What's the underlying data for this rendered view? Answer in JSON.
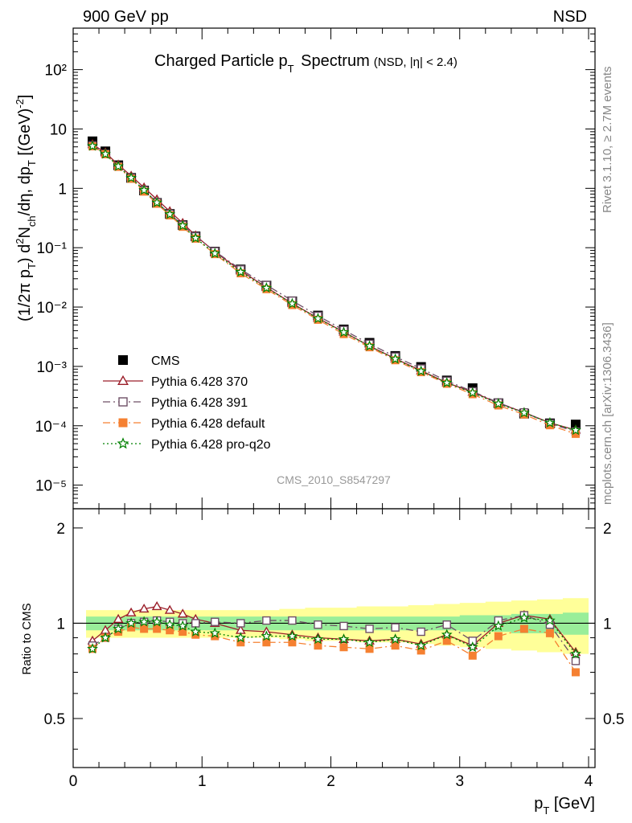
{
  "header": {
    "left": "900 GeV pp",
    "right": "NSD"
  },
  "side_text": {
    "rivet": "Rivet 3.1.10, ≥ 2.7M events",
    "mcplots": "mcplots.cern.ch [arXiv:1306.3436]"
  },
  "chart_data": [
    {
      "type": "scatter",
      "panel": "main",
      "title": "Charged Particle p_T Spectrum",
      "subtitle": "(NSD, |η| < 2.4)",
      "watermark": "CMS_2010_S8547297",
      "xlabel": "p_T [GeV]",
      "ylabel": "(1/2π p_T) d²N_ch/dη, dp_T [(GeV)⁻²]",
      "xlim": [
        0,
        4.05
      ],
      "ylim": [
        4e-06,
        500
      ],
      "yscale": "log",
      "ytick_labels": [
        "10⁻⁵",
        "10⁻⁴",
        "10⁻³",
        "10⁻²",
        "10⁻¹",
        "1",
        "10",
        "10²"
      ],
      "legend_position": "lower-left",
      "x": [
        0.15,
        0.25,
        0.35,
        0.45,
        0.55,
        0.65,
        0.75,
        0.85,
        0.95,
        1.1,
        1.3,
        1.5,
        1.7,
        1.9,
        2.1,
        2.3,
        2.5,
        2.7,
        2.9,
        3.1,
        3.3,
        3.5,
        3.7,
        3.9
      ],
      "series": [
        {
          "name": "CMS",
          "color": "#000000",
          "marker": "square-filled",
          "line": "none",
          "values": [
            6.2,
            4.2,
            2.45,
            1.5,
            0.92,
            0.57,
            0.37,
            0.24,
            0.155,
            0.086,
            0.043,
            0.023,
            0.0125,
            0.0072,
            0.0042,
            0.0025,
            0.0015,
            0.00098,
            0.00058,
            0.00043,
            0.00024,
            0.00016,
            0.00011,
            0.000105
          ]
        },
        {
          "name": "Pythia 6.428 370",
          "color": "#9b1f2a",
          "marker": "triangle-open",
          "line": "solid",
          "values": [
            5.5,
            4.0,
            2.5,
            1.62,
            1.03,
            0.65,
            0.41,
            0.26,
            0.16,
            0.085,
            0.041,
            0.0215,
            0.0115,
            0.0065,
            0.0038,
            0.0022,
            0.00135,
            0.00085,
            0.00053,
            0.00037,
            0.00024,
            0.000168,
            0.000112,
            8.5e-05
          ]
        },
        {
          "name": "Pythia 6.428 391",
          "color": "#6e4f66",
          "marker": "square-open",
          "line": "dashdot",
          "values": [
            5.3,
            3.8,
            2.35,
            1.5,
            0.93,
            0.58,
            0.37,
            0.24,
            0.155,
            0.087,
            0.043,
            0.0235,
            0.0128,
            0.0071,
            0.0041,
            0.0024,
            0.00146,
            0.00092,
            0.00057,
            0.00038,
            0.000245,
            0.000168,
            0.000109,
            8e-05
          ]
        },
        {
          "name": "Pythia 6.428 default",
          "color": "#f58031",
          "marker": "square-filled",
          "line": "dashdot",
          "values": [
            5.1,
            3.75,
            2.3,
            1.45,
            0.88,
            0.55,
            0.35,
            0.225,
            0.142,
            0.078,
            0.037,
            0.02,
            0.0108,
            0.0061,
            0.0035,
            0.0021,
            0.00127,
            0.0008,
            0.00051,
            0.00034,
            0.00022,
            0.000155,
            0.000102,
            7.3e-05
          ]
        },
        {
          "name": "Pythia 6.428 pro-q2o",
          "color": "#008000",
          "marker": "star-open",
          "line": "dotted",
          "values": [
            5.15,
            3.78,
            2.35,
            1.5,
            0.93,
            0.575,
            0.365,
            0.235,
            0.145,
            0.08,
            0.039,
            0.021,
            0.0114,
            0.0064,
            0.00375,
            0.0022,
            0.00133,
            0.00083,
            0.00053,
            0.00036,
            0.000235,
            0.000165,
            0.000112,
            8.4e-05
          ]
        }
      ]
    },
    {
      "type": "line",
      "panel": "ratio",
      "ylabel": "Ratio to CMS",
      "xlabel": "p_T [GeV]",
      "xlim": [
        0,
        4.05
      ],
      "ylim": [
        0.35,
        2.3
      ],
      "yscale": "log",
      "yticks": [
        0.5,
        1,
        2
      ],
      "ytick_labels": [
        "0.5",
        "1",
        "2"
      ],
      "xticks": [
        0,
        1,
        2,
        3,
        4
      ],
      "xtick_labels": [
        "0",
        "1",
        "2",
        "3",
        "4"
      ],
      "x": [
        0.15,
        0.25,
        0.35,
        0.45,
        0.55,
        0.65,
        0.75,
        0.85,
        0.95,
        1.1,
        1.3,
        1.5,
        1.7,
        1.9,
        2.1,
        2.3,
        2.5,
        2.7,
        2.9,
        3.1,
        3.3,
        3.5,
        3.7,
        3.9
      ],
      "band_x": [
        0.1,
        0.2,
        0.3,
        0.4,
        0.5,
        0.6,
        0.7,
        0.8,
        0.9,
        1.0,
        1.2,
        1.4,
        1.6,
        1.8,
        2.0,
        2.2,
        2.4,
        2.6,
        2.8,
        3.0,
        3.2,
        3.4,
        3.6,
        3.8,
        4.0
      ],
      "band_inner": [
        0.05,
        0.05,
        0.05,
        0.05,
        0.05,
        0.05,
        0.05,
        0.05,
        0.05,
        0.05,
        0.05,
        0.05,
        0.05,
        0.05,
        0.05,
        0.05,
        0.05,
        0.05,
        0.05,
        0.06,
        0.06,
        0.07,
        0.07,
        0.08
      ],
      "band_outer": [
        0.1,
        0.1,
        0.1,
        0.1,
        0.1,
        0.1,
        0.1,
        0.1,
        0.1,
        0.1,
        0.1,
        0.1,
        0.11,
        0.12,
        0.12,
        0.13,
        0.13,
        0.14,
        0.15,
        0.16,
        0.17,
        0.18,
        0.19,
        0.2
      ],
      "band_colors": {
        "inner": "#99ee99",
        "outer": "#ffff99"
      },
      "series": [
        {
          "name": "Pythia 6.428 370",
          "color": "#9b1f2a",
          "marker": "triangle-open",
          "line": "solid",
          "values": [
            0.88,
            0.95,
            1.03,
            1.08,
            1.11,
            1.13,
            1.1,
            1.07,
            1.03,
            1.0,
            0.95,
            0.94,
            0.92,
            0.9,
            0.89,
            0.88,
            0.89,
            0.86,
            0.92,
            0.85,
            1.0,
            1.06,
            1.03,
            0.81
          ]
        },
        {
          "name": "Pythia 6.428 391",
          "color": "#6e4f66",
          "marker": "square-open",
          "line": "dashdot",
          "values": [
            0.85,
            0.9,
            0.96,
            1.0,
            1.01,
            1.02,
            1.01,
            1.0,
            1.0,
            1.01,
            1.0,
            1.02,
            1.02,
            0.99,
            0.98,
            0.96,
            0.97,
            0.94,
            0.99,
            0.88,
            1.02,
            1.06,
            0.99,
            0.76
          ]
        },
        {
          "name": "Pythia 6.428 default",
          "color": "#f58031",
          "marker": "square-filled",
          "line": "dashdot",
          "values": [
            0.83,
            0.9,
            0.94,
            0.97,
            0.96,
            0.96,
            0.95,
            0.94,
            0.92,
            0.91,
            0.87,
            0.87,
            0.87,
            0.85,
            0.84,
            0.83,
            0.85,
            0.82,
            0.88,
            0.79,
            0.91,
            0.96,
            0.93,
            0.7
          ]
        },
        {
          "name": "Pythia 6.428 pro-q2o",
          "color": "#008000",
          "marker": "star-open",
          "line": "dotted",
          "values": [
            0.83,
            0.9,
            0.96,
            1.0,
            1.01,
            1.01,
            0.99,
            0.98,
            0.94,
            0.93,
            0.9,
            0.91,
            0.91,
            0.89,
            0.89,
            0.87,
            0.89,
            0.85,
            0.92,
            0.84,
            0.98,
            1.04,
            1.02,
            0.8
          ]
        }
      ]
    }
  ]
}
